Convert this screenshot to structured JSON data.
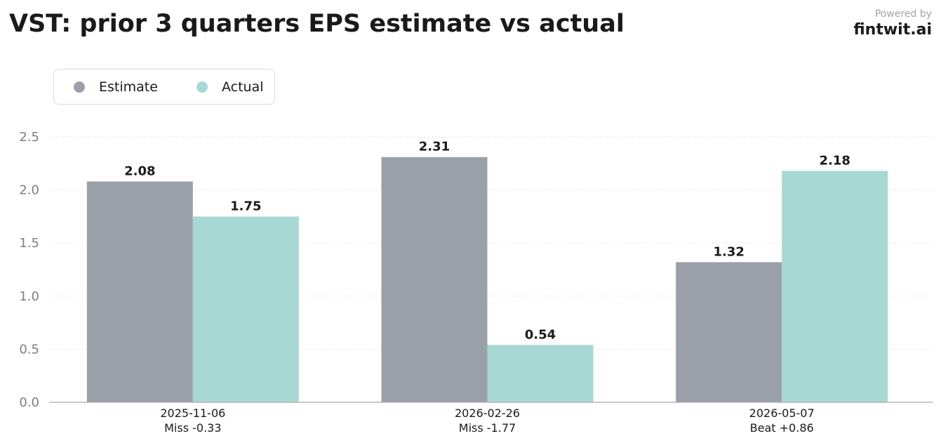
{
  "title": "VST: prior 3 quarters EPS estimate vs actual",
  "powered_by": {
    "label": "Powered by",
    "brand": "fintwit.ai"
  },
  "legend": [
    {
      "name": "Estimate",
      "color": "#9aa0a8"
    },
    {
      "name": "Actual",
      "color": "#a8d8d4"
    }
  ],
  "chart_data": {
    "type": "bar",
    "title": "VST: prior 3 quarters EPS estimate vs actual",
    "categories": [
      "2025-11-06",
      "2026-02-26",
      "2026-05-07"
    ],
    "category_sublabels": [
      "Miss -0.33",
      "Miss -1.77",
      "Beat +0.86"
    ],
    "series": [
      {
        "name": "Estimate",
        "values": [
          2.08,
          2.31,
          1.32
        ],
        "color": "#9aa0a8"
      },
      {
        "name": "Actual",
        "values": [
          1.75,
          0.54,
          2.18
        ],
        "color": "#a8d8d4"
      }
    ],
    "value_labels": [
      [
        "2.08",
        "2.31",
        "1.32"
      ],
      [
        "1.75",
        "0.54",
        "2.18"
      ]
    ],
    "yticks": [
      "0.0",
      "0.5",
      "1.0",
      "1.5",
      "2.0",
      "2.5"
    ],
    "ylim": [
      0,
      2.5
    ],
    "grid": true,
    "legend_position": "top-left"
  }
}
